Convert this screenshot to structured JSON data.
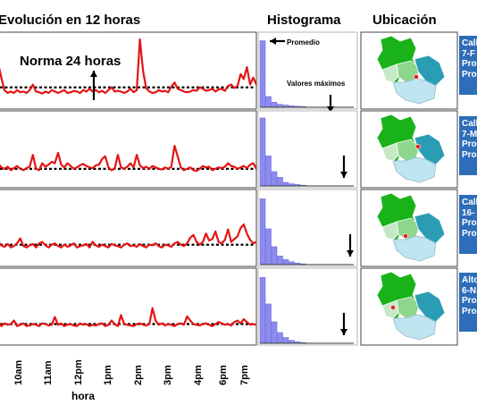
{
  "headers": {
    "evolution": "Evolución en 12 horas",
    "histogram": "Histograma",
    "location": "Ubicación"
  },
  "annotations": {
    "norm": "Norma 24 horas",
    "average": "Promedio",
    "max_values": "Valores máximos"
  },
  "x_axis": {
    "label": "hora",
    "ticks": [
      "10am",
      "11am",
      "12pm",
      "1pm",
      "2pm",
      "3pm",
      "4pm",
      "6pm",
      "7pm"
    ]
  },
  "colors": {
    "series_line": "#e41515",
    "norm_line": "#000000",
    "histogram_bars": "#8c8cf0",
    "card_background": "#2e6db8",
    "map_dark_green": "#19b319",
    "map_light_green": "#8ed68e",
    "map_teal": "#2a9db5",
    "map_light_blue": "#bfe6f0"
  },
  "station_cards": [
    {
      "lines": [
        "Call",
        "7-F",
        "Pro",
        "Pro"
      ]
    },
    {
      "lines": [
        "Call",
        "7-M",
        "Pro",
        "Pro"
      ]
    },
    {
      "lines": [
        "Call",
        "16-",
        "Pro",
        "Pro"
      ]
    },
    {
      "lines": [
        "Alto",
        "6-N",
        "Pro",
        "Pro"
      ]
    }
  ],
  "chart_data": [
    {
      "type": "line",
      "norm_level": 0.26,
      "y_range": [
        0,
        1
      ],
      "values": [
        0.6,
        0.4,
        0.22,
        0.18,
        0.2,
        0.18,
        0.22,
        0.19,
        0.2,
        0.18,
        0.22,
        0.3,
        0.2,
        0.19,
        0.17,
        0.2,
        0.18,
        0.22,
        0.2,
        0.18,
        0.2,
        0.22,
        0.18,
        0.19,
        0.21,
        0.2,
        0.18,
        0.22,
        0.2,
        0.24,
        0.2,
        0.22,
        0.19,
        0.21,
        0.18,
        0.22,
        0.26,
        0.2,
        0.21,
        0.2,
        0.18,
        0.2,
        0.24,
        0.19,
        0.22,
        0.95,
        0.5,
        0.25,
        0.2,
        0.18,
        0.19,
        0.22,
        0.2,
        0.21,
        0.19,
        0.27,
        0.33,
        0.24,
        0.22,
        0.2,
        0.19,
        0.2,
        0.22,
        0.21,
        0.26,
        0.24,
        0.21,
        0.22,
        0.24,
        0.2,
        0.23,
        0.24,
        0.21,
        0.28,
        0.3,
        0.25,
        0.28,
        0.45,
        0.38,
        0.55,
        0.3,
        0.4,
        0.3
      ],
      "histogram": [
        0.93,
        0.15,
        0.07,
        0.04,
        0.03,
        0.02,
        0.015,
        0.01
      ]
    },
    {
      "type": "line",
      "norm_level": 0.22,
      "y_range": [
        0,
        1
      ],
      "values": [
        0.3,
        0.24,
        0.22,
        0.25,
        0.2,
        0.23,
        0.26,
        0.22,
        0.2,
        0.23,
        0.25,
        0.42,
        0.22,
        0.2,
        0.3,
        0.25,
        0.28,
        0.32,
        0.3,
        0.45,
        0.28,
        0.24,
        0.3,
        0.26,
        0.22,
        0.24,
        0.27,
        0.29,
        0.26,
        0.24,
        0.23,
        0.27,
        0.28,
        0.36,
        0.4,
        0.24,
        0.2,
        0.22,
        0.42,
        0.24,
        0.22,
        0.25,
        0.3,
        0.24,
        0.42,
        0.27,
        0.23,
        0.25,
        0.22,
        0.26,
        0.24,
        0.22,
        0.21,
        0.24,
        0.22,
        0.25,
        0.55,
        0.4,
        0.24,
        0.2,
        0.22,
        0.24,
        0.2,
        0.19,
        0.22,
        0.26,
        0.24,
        0.25,
        0.2,
        0.22,
        0.24,
        0.23,
        0.25,
        0.3,
        0.26,
        0.25,
        0.22,
        0.24,
        0.26,
        0.23,
        0.28,
        0.3,
        0.22
      ],
      "histogram": [
        0.95,
        0.42,
        0.2,
        0.12,
        0.05,
        0.03,
        0.02,
        0.01
      ]
    },
    {
      "type": "line",
      "norm_level": 0.26,
      "y_range": [
        0,
        1
      ],
      "values": [
        0.3,
        0.25,
        0.23,
        0.27,
        0.22,
        0.24,
        0.28,
        0.35,
        0.24,
        0.22,
        0.25,
        0.27,
        0.22,
        0.28,
        0.3,
        0.25,
        0.22,
        0.26,
        0.28,
        0.24,
        0.22,
        0.26,
        0.23,
        0.25,
        0.28,
        0.22,
        0.24,
        0.25,
        0.27,
        0.22,
        0.3,
        0.25,
        0.23,
        0.26,
        0.24,
        0.22,
        0.27,
        0.25,
        0.24,
        0.22,
        0.26,
        0.28,
        0.24,
        0.25,
        0.23,
        0.27,
        0.24,
        0.22,
        0.26,
        0.25,
        0.28,
        0.24,
        0.22,
        0.26,
        0.25,
        0.23,
        0.28,
        0.3,
        0.26,
        0.24,
        0.28,
        0.36,
        0.4,
        0.3,
        0.26,
        0.3,
        0.42,
        0.32,
        0.34,
        0.45,
        0.3,
        0.28,
        0.33,
        0.48,
        0.3,
        0.34,
        0.38,
        0.5,
        0.55,
        0.42,
        0.33,
        0.28,
        0.3
      ],
      "histogram": [
        0.92,
        0.5,
        0.25,
        0.12,
        0.07,
        0.04,
        0.02,
        0.01
      ]
    },
    {
      "type": "line",
      "norm_level": 0.25,
      "y_range": [
        0,
        1
      ],
      "values": [
        0.28,
        0.22,
        0.26,
        0.24,
        0.25,
        0.3,
        0.22,
        0.24,
        0.26,
        0.22,
        0.23,
        0.25,
        0.24,
        0.22,
        0.26,
        0.25,
        0.23,
        0.24,
        0.35,
        0.24,
        0.26,
        0.22,
        0.24,
        0.25,
        0.23,
        0.22,
        0.26,
        0.24,
        0.25,
        0.22,
        0.24,
        0.23,
        0.25,
        0.26,
        0.22,
        0.24,
        0.3,
        0.25,
        0.22,
        0.38,
        0.25,
        0.24,
        0.23,
        0.22,
        0.25,
        0.26,
        0.24,
        0.23,
        0.25,
        0.48,
        0.3,
        0.24,
        0.26,
        0.23,
        0.25,
        0.24,
        0.22,
        0.25,
        0.26,
        0.24,
        0.36,
        0.3,
        0.25,
        0.24,
        0.23,
        0.25,
        0.26,
        0.24,
        0.22,
        0.25,
        0.28,
        0.26,
        0.24,
        0.25,
        0.23,
        0.28,
        0.3,
        0.26,
        0.32,
        0.28,
        0.24,
        0.25,
        0.24
      ],
      "histogram": [
        0.92,
        0.55,
        0.3,
        0.15,
        0.08,
        0.04,
        0.02,
        0.01
      ]
    }
  ]
}
